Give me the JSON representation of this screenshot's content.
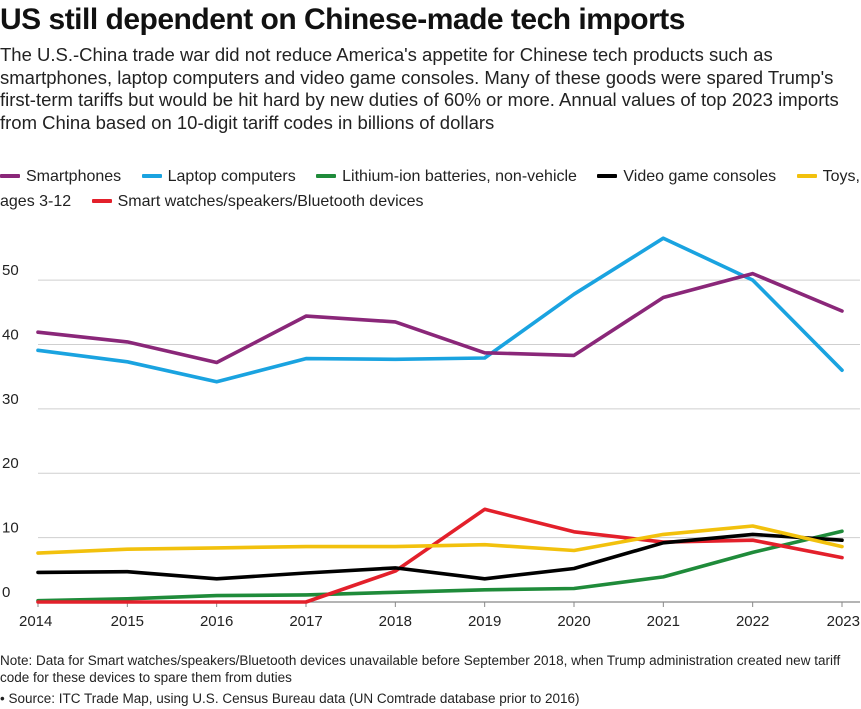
{
  "header": {
    "title": "US still dependent on Chinese-made tech imports",
    "subtitle": "The U.S.-China trade war did not reduce America's appetite for Chinese tech products such as smartphones, laptop computers and video game consoles. Many of these goods were spared Trump's first-term tariffs but would be hit hard by new duties of 60% or more. Annual values of top 2023 imports from China based on 10-digit tariff codes in billions of dollars"
  },
  "legend": [
    {
      "label": "Smartphones",
      "color": "#8a2779"
    },
    {
      "label": "Laptop computers",
      "color": "#1aa3e0"
    },
    {
      "label": "Lithium-ion batteries, non-vehicle",
      "color": "#1f8b3a"
    },
    {
      "label": "Video game consoles",
      "color": "#000000"
    },
    {
      "label": "Toys, ages 3-12",
      "color": "#f2c10d"
    },
    {
      "label": "Smart watches/speakers/Bluetooth devices",
      "color": "#e3202b"
    }
  ],
  "chart_data": {
    "type": "line",
    "x": [
      "2014",
      "2015",
      "2016",
      "2017",
      "2018",
      "2019",
      "2020",
      "2021",
      "2022",
      "2023"
    ],
    "ylim": [
      0,
      57
    ],
    "yticks": [
      0,
      10,
      20,
      30,
      40,
      50
    ],
    "grid": true,
    "series": [
      {
        "name": "Smartphones",
        "color": "#8a2779",
        "values": [
          41.9,
          40.4,
          37.2,
          44.4,
          43.5,
          38.7,
          38.3,
          47.3,
          51.0,
          45.2
        ]
      },
      {
        "name": "Laptop computers",
        "color": "#1aa3e0",
        "values": [
          39.1,
          37.3,
          34.2,
          37.8,
          37.7,
          37.9,
          47.8,
          56.5,
          50.0,
          36.0
        ]
      },
      {
        "name": "Lithium-ion batteries, non-vehicle",
        "color": "#1f8b3a",
        "values": [
          0.2,
          0.5,
          1.0,
          1.1,
          1.5,
          1.9,
          2.1,
          3.9,
          7.7,
          11.0
        ]
      },
      {
        "name": "Video game consoles",
        "color": "#000000",
        "values": [
          4.6,
          4.7,
          3.6,
          4.5,
          5.3,
          3.6,
          5.2,
          9.2,
          10.5,
          9.6
        ]
      },
      {
        "name": "Toys, ages 3-12",
        "color": "#f2c10d",
        "values": [
          7.6,
          8.2,
          8.4,
          8.6,
          8.6,
          8.9,
          8.0,
          10.5,
          11.8,
          8.6
        ]
      },
      {
        "name": "Smart watches/speakers/Bluetooth devices",
        "color": "#e3202b",
        "values": [
          0.0,
          0.0,
          0.0,
          0.0,
          4.8,
          14.4,
          10.9,
          9.3,
          9.6,
          6.9
        ]
      }
    ]
  },
  "footer": {
    "note": "Note: Data for Smart watches/speakers/Bluetooth devices unavailable before September 2018, when Trump administration created new tariff code for these devices to spare them from duties",
    "source": "• Source: ITC Trade Map, using U.S. Census Bureau data (UN Comtrade database prior to 2016)"
  }
}
